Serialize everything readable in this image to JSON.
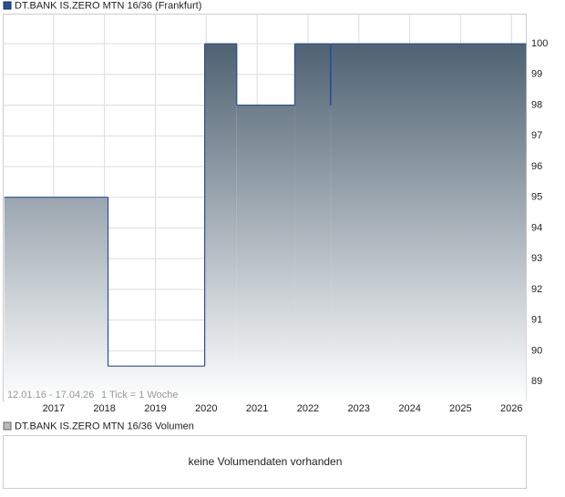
{
  "chart_data": {
    "type": "step-area",
    "title": "DT.BANK IS.ZERO MTN 16/36 (Frankfurt)",
    "date_range": "12.01.16 - 17.04.26",
    "tick_note": "1 Tick = 1 Woche",
    "x": [
      2016.03,
      2018.07,
      2019.97,
      2020.6,
      2021.74,
      2022.44,
      2022.45,
      2026.29
    ],
    "series": [
      {
        "name": "DT.BANK IS.ZERO MTN 16/36",
        "color": "#2b4f94",
        "values": [
          95,
          89.5,
          100,
          98,
          100,
          98,
          100,
          100
        ]
      }
    ],
    "xlim": [
      2016.0,
      2026.3
    ],
    "xticks": [
      2017,
      2018,
      2019,
      2020,
      2021,
      2022,
      2023,
      2024,
      2025,
      2026
    ],
    "ylim": [
      88.35,
      100.98
    ],
    "yticks": [
      89,
      90,
      91,
      92,
      93,
      94,
      95,
      96,
      97,
      98,
      99,
      100
    ],
    "grid": true,
    "volume": {
      "title": "DT.BANK IS.ZERO MTN 16/36 Volumen",
      "message": "keine Volumendaten vorhanden"
    }
  }
}
